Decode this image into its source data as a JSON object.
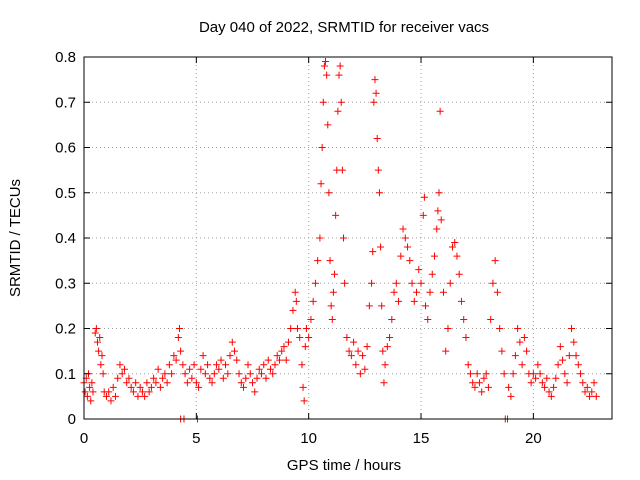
{
  "chart_data": {
    "type": "scatter",
    "title": "Day 040 of 2022, SRMTID for receiver vacs",
    "xlabel": "GPS time / hours",
    "ylabel": "SRMTID / TECUs",
    "xlim": [
      0,
      23.5
    ],
    "ylim": [
      0,
      0.8
    ],
    "xticks": [
      0,
      5,
      10,
      15,
      20
    ],
    "yticks": [
      0,
      0.1,
      0.2,
      0.3,
      0.4,
      0.5,
      0.6,
      0.7,
      0.8
    ],
    "xtick_labels": [
      "0",
      "5",
      "10",
      "15",
      "20"
    ],
    "ytick_labels": [
      "0",
      "0.1",
      "0.2",
      "0.3",
      "0.4",
      "0.5",
      "0.6",
      "0.7",
      "0.8"
    ],
    "grid": true,
    "marker": "+",
    "marker_color": "#ff0000",
    "series": [
      {
        "name": "SRMTID",
        "points": [
          [
            0.0,
            0.08
          ],
          [
            0.05,
            0.06
          ],
          [
            0.1,
            0.09
          ],
          [
            0.15,
            0.05
          ],
          [
            0.2,
            0.1
          ],
          [
            0.25,
            0.07
          ],
          [
            0.3,
            0.04
          ],
          [
            0.35,
            0.08
          ],
          [
            0.4,
            0.06
          ],
          [
            0.5,
            0.19
          ],
          [
            0.55,
            0.2
          ],
          [
            0.6,
            0.17
          ],
          [
            0.65,
            0.15
          ],
          [
            0.7,
            0.18
          ],
          [
            0.75,
            0.12
          ],
          [
            0.8,
            0.14
          ],
          [
            0.85,
            0.1
          ],
          [
            0.9,
            0.06
          ],
          [
            1.0,
            0.05
          ],
          [
            1.1,
            0.06
          ],
          [
            1.2,
            0.04
          ],
          [
            1.3,
            0.07
          ],
          [
            1.4,
            0.05
          ],
          [
            1.5,
            0.09
          ],
          [
            1.6,
            0.12
          ],
          [
            1.7,
            0.1
          ],
          [
            1.8,
            0.11
          ],
          [
            1.9,
            0.08
          ],
          [
            2.0,
            0.09
          ],
          [
            2.1,
            0.07
          ],
          [
            2.2,
            0.06
          ],
          [
            2.3,
            0.08
          ],
          [
            2.4,
            0.05
          ],
          [
            2.5,
            0.07
          ],
          [
            2.6,
            0.06
          ],
          [
            2.7,
            0.05
          ],
          [
            2.8,
            0.08
          ],
          [
            2.9,
            0.06
          ],
          [
            3.0,
            0.07
          ],
          [
            3.1,
            0.09
          ],
          [
            3.2,
            0.08
          ],
          [
            3.3,
            0.11
          ],
          [
            3.4,
            0.07
          ],
          [
            3.5,
            0.09
          ],
          [
            3.6,
            0.1
          ],
          [
            3.7,
            0.08
          ],
          [
            3.8,
            0.12
          ],
          [
            3.9,
            0.1
          ],
          [
            4.0,
            0.14
          ],
          [
            4.1,
            0.13
          ],
          [
            4.2,
            0.18
          ],
          [
            4.25,
            0.2
          ],
          [
            4.3,
            0.15
          ],
          [
            4.4,
            0.12
          ],
          [
            4.3,
            0.0
          ],
          [
            4.45,
            0.0
          ],
          [
            4.5,
            0.1
          ],
          [
            4.6,
            0.08
          ],
          [
            4.7,
            0.11
          ],
          [
            4.8,
            0.09
          ],
          [
            4.9,
            0.12
          ],
          [
            5.0,
            0.08
          ],
          [
            5.05,
            0.0
          ],
          [
            5.1,
            0.07
          ],
          [
            5.2,
            0.11
          ],
          [
            5.3,
            0.14
          ],
          [
            5.4,
            0.1
          ],
          [
            5.5,
            0.12
          ],
          [
            5.6,
            0.09
          ],
          [
            5.7,
            0.08
          ],
          [
            5.8,
            0.1
          ],
          [
            5.9,
            0.12
          ],
          [
            6.0,
            0.11
          ],
          [
            6.1,
            0.13
          ],
          [
            6.2,
            0.09
          ],
          [
            6.3,
            0.12
          ],
          [
            6.4,
            0.1
          ],
          [
            6.5,
            0.14
          ],
          [
            6.6,
            0.17
          ],
          [
            6.7,
            0.15
          ],
          [
            6.8,
            0.13
          ],
          [
            6.9,
            0.1
          ],
          [
            7.0,
            0.08
          ],
          [
            7.1,
            0.07
          ],
          [
            7.2,
            0.09
          ],
          [
            7.3,
            0.12
          ],
          [
            7.4,
            0.1
          ],
          [
            7.5,
            0.08
          ],
          [
            7.6,
            0.06
          ],
          [
            7.7,
            0.09
          ],
          [
            7.8,
            0.11
          ],
          [
            7.9,
            0.1
          ],
          [
            8.0,
            0.12
          ],
          [
            8.1,
            0.09
          ],
          [
            8.2,
            0.13
          ],
          [
            8.3,
            0.11
          ],
          [
            8.4,
            0.1
          ],
          [
            8.5,
            0.12
          ],
          [
            8.6,
            0.14
          ],
          [
            8.7,
            0.13
          ],
          [
            8.8,
            0.15
          ],
          [
            8.9,
            0.16
          ],
          [
            9.0,
            0.13
          ],
          [
            9.1,
            0.17
          ],
          [
            9.2,
            0.2
          ],
          [
            9.3,
            0.24
          ],
          [
            9.4,
            0.28
          ],
          [
            9.45,
            0.26
          ],
          [
            9.5,
            0.2
          ],
          [
            9.6,
            0.18
          ],
          [
            9.7,
            0.12
          ],
          [
            9.75,
            0.07
          ],
          [
            9.8,
            0.04
          ],
          [
            9.85,
            0.16
          ],
          [
            9.9,
            0.2
          ],
          [
            10.0,
            0.18
          ],
          [
            10.1,
            0.22
          ],
          [
            10.2,
            0.26
          ],
          [
            10.3,
            0.3
          ],
          [
            10.4,
            0.35
          ],
          [
            10.5,
            0.4
          ],
          [
            10.55,
            0.52
          ],
          [
            10.6,
            0.6
          ],
          [
            10.65,
            0.7
          ],
          [
            10.7,
            0.78
          ],
          [
            10.75,
            0.79
          ],
          [
            10.8,
            0.76
          ],
          [
            10.85,
            0.65
          ],
          [
            10.9,
            0.5
          ],
          [
            10.95,
            0.35
          ],
          [
            11.0,
            0.25
          ],
          [
            11.05,
            0.22
          ],
          [
            11.1,
            0.28
          ],
          [
            11.15,
            0.32
          ],
          [
            11.2,
            0.45
          ],
          [
            11.25,
            0.55
          ],
          [
            11.3,
            0.68
          ],
          [
            11.35,
            0.76
          ],
          [
            11.4,
            0.78
          ],
          [
            11.45,
            0.7
          ],
          [
            11.5,
            0.55
          ],
          [
            11.55,
            0.4
          ],
          [
            11.6,
            0.3
          ],
          [
            11.7,
            0.18
          ],
          [
            11.8,
            0.15
          ],
          [
            11.9,
            0.14
          ],
          [
            12.0,
            0.17
          ],
          [
            12.1,
            0.12
          ],
          [
            12.2,
            0.15
          ],
          [
            12.3,
            0.1
          ],
          [
            12.4,
            0.14
          ],
          [
            12.5,
            0.11
          ],
          [
            12.6,
            0.16
          ],
          [
            12.7,
            0.25
          ],
          [
            12.8,
            0.3
          ],
          [
            12.85,
            0.37
          ],
          [
            12.9,
            0.7
          ],
          [
            12.95,
            0.75
          ],
          [
            13.0,
            0.72
          ],
          [
            13.05,
            0.62
          ],
          [
            13.1,
            0.55
          ],
          [
            13.15,
            0.5
          ],
          [
            13.2,
            0.38
          ],
          [
            13.25,
            0.25
          ],
          [
            13.3,
            0.15
          ],
          [
            13.35,
            0.08
          ],
          [
            13.4,
            0.12
          ],
          [
            13.5,
            0.16
          ],
          [
            13.6,
            0.18
          ],
          [
            13.7,
            0.22
          ],
          [
            13.8,
            0.28
          ],
          [
            13.9,
            0.3
          ],
          [
            14.0,
            0.26
          ],
          [
            14.1,
            0.36
          ],
          [
            14.2,
            0.42
          ],
          [
            14.3,
            0.4
          ],
          [
            14.4,
            0.38
          ],
          [
            14.5,
            0.35
          ],
          [
            14.6,
            0.3
          ],
          [
            14.7,
            0.26
          ],
          [
            14.8,
            0.28
          ],
          [
            14.9,
            0.33
          ],
          [
            15.0,
            0.3
          ],
          [
            15.1,
            0.45
          ],
          [
            15.15,
            0.49
          ],
          [
            15.2,
            0.25
          ],
          [
            15.3,
            0.22
          ],
          [
            15.4,
            0.28
          ],
          [
            15.5,
            0.32
          ],
          [
            15.6,
            0.36
          ],
          [
            15.7,
            0.42
          ],
          [
            15.75,
            0.46
          ],
          [
            15.8,
            0.5
          ],
          [
            15.85,
            0.68
          ],
          [
            15.9,
            0.44
          ],
          [
            16.0,
            0.28
          ],
          [
            16.1,
            0.15
          ],
          [
            16.2,
            0.2
          ],
          [
            16.3,
            0.3
          ],
          [
            16.4,
            0.38
          ],
          [
            16.5,
            0.39
          ],
          [
            16.6,
            0.36
          ],
          [
            16.7,
            0.32
          ],
          [
            16.8,
            0.26
          ],
          [
            16.9,
            0.22
          ],
          [
            17.0,
            0.18
          ],
          [
            17.1,
            0.12
          ],
          [
            17.2,
            0.1
          ],
          [
            17.3,
            0.08
          ],
          [
            17.4,
            0.07
          ],
          [
            17.5,
            0.1
          ],
          [
            17.6,
            0.08
          ],
          [
            17.7,
            0.06
          ],
          [
            17.8,
            0.09
          ],
          [
            17.9,
            0.1
          ],
          [
            18.0,
            0.07
          ],
          [
            18.1,
            0.22
          ],
          [
            18.2,
            0.3
          ],
          [
            18.3,
            0.35
          ],
          [
            18.4,
            0.28
          ],
          [
            18.5,
            0.2
          ],
          [
            18.6,
            0.15
          ],
          [
            18.7,
            0.1
          ],
          [
            18.75,
            0.0
          ],
          [
            18.85,
            0.0
          ],
          [
            18.9,
            0.07
          ],
          [
            19.0,
            0.05
          ],
          [
            19.1,
            0.1
          ],
          [
            19.2,
            0.14
          ],
          [
            19.3,
            0.2
          ],
          [
            19.4,
            0.17
          ],
          [
            19.5,
            0.12
          ],
          [
            19.6,
            0.18
          ],
          [
            19.7,
            0.15
          ],
          [
            19.8,
            0.1
          ],
          [
            19.9,
            0.08
          ],
          [
            20.0,
            0.1
          ],
          [
            20.1,
            0.09
          ],
          [
            20.2,
            0.12
          ],
          [
            20.3,
            0.1
          ],
          [
            20.4,
            0.08
          ],
          [
            20.5,
            0.07
          ],
          [
            20.6,
            0.09
          ],
          [
            20.7,
            0.06
          ],
          [
            20.8,
            0.05
          ],
          [
            20.9,
            0.07
          ],
          [
            21.0,
            0.09
          ],
          [
            21.1,
            0.12
          ],
          [
            21.2,
            0.16
          ],
          [
            21.3,
            0.13
          ],
          [
            21.4,
            0.1
          ],
          [
            21.5,
            0.08
          ],
          [
            21.6,
            0.14
          ],
          [
            21.7,
            0.2
          ],
          [
            21.8,
            0.17
          ],
          [
            21.9,
            0.14
          ],
          [
            22.0,
            0.12
          ],
          [
            22.1,
            0.1
          ],
          [
            22.2,
            0.08
          ],
          [
            22.3,
            0.06
          ],
          [
            22.4,
            0.07
          ],
          [
            22.5,
            0.05
          ],
          [
            22.6,
            0.06
          ],
          [
            22.7,
            0.08
          ],
          [
            22.8,
            0.05
          ]
        ]
      }
    ]
  }
}
